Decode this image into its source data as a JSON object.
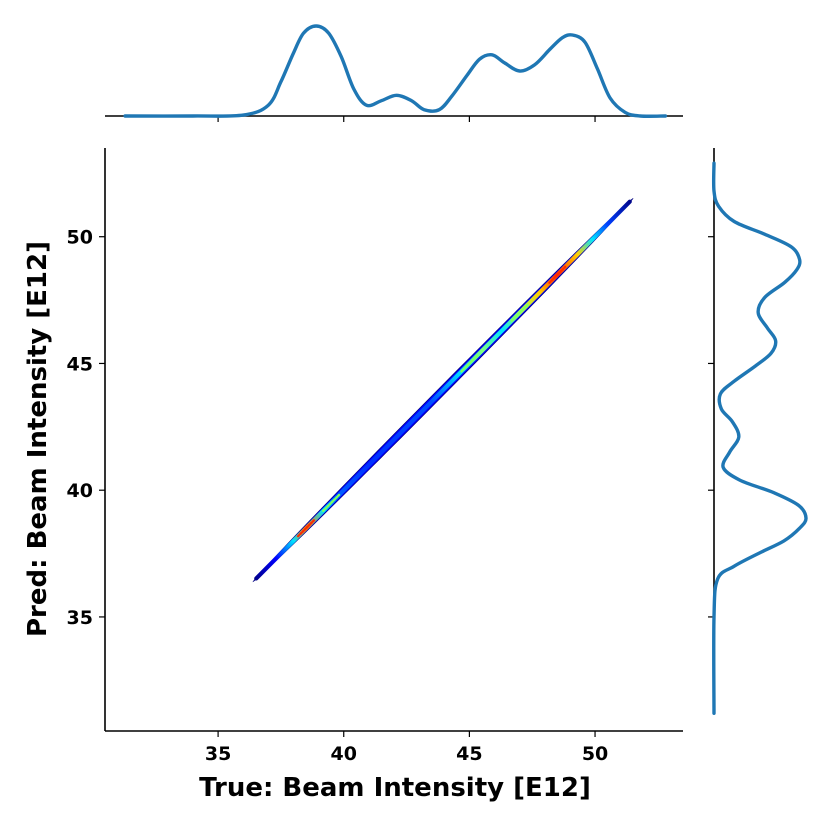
{
  "chart_data": {
    "type": "jointplot",
    "title": "",
    "xlabel": "True: Beam Intensity [E12]",
    "ylabel": "Pred: Beam Intensity [E12]",
    "xlim": [
      30.5,
      53.5
    ],
    "ylim": [
      30.5,
      53.5
    ],
    "xticks": [
      35,
      40,
      45,
      50
    ],
    "yticks": [
      35,
      40,
      45,
      50
    ],
    "grid": false,
    "legend": "none",
    "joint": {
      "kind": "density contour (kde)",
      "colormap": "jet",
      "x_range": [
        36.4,
        51.5
      ],
      "y_range": [
        36.4,
        51.5
      ],
      "density_peaks": [
        {
          "x": 38.5,
          "y": 38.5,
          "level": "high"
        },
        {
          "x": 39.5,
          "y": 39.5,
          "level": "medium"
        },
        {
          "x": 45.0,
          "y": 45.0,
          "level": "medium"
        },
        {
          "x": 47.0,
          "y": 47.0,
          "level": "medium"
        },
        {
          "x": 48.5,
          "y": 48.5,
          "level": "high"
        }
      ]
    },
    "marginal_x": {
      "name": "True: Beam Intensity [E12]",
      "x": [
        31.3,
        34.0,
        36.0,
        37.0,
        37.5,
        38.0,
        38.4,
        38.9,
        39.4,
        39.9,
        40.4,
        40.9,
        41.5,
        42.1,
        42.7,
        43.2,
        43.8,
        44.3,
        44.9,
        45.4,
        45.9,
        46.4,
        47.0,
        47.6,
        48.2,
        48.7,
        49.1,
        49.6,
        50.1,
        50.6,
        51.2,
        51.8,
        52.8
      ],
      "density": [
        0.0,
        0.0,
        0.01,
        0.12,
        0.38,
        0.7,
        0.92,
        1.0,
        0.92,
        0.66,
        0.3,
        0.12,
        0.17,
        0.23,
        0.17,
        0.07,
        0.07,
        0.22,
        0.45,
        0.63,
        0.68,
        0.59,
        0.5,
        0.57,
        0.74,
        0.87,
        0.9,
        0.82,
        0.52,
        0.2,
        0.04,
        0.0,
        0.0
      ]
    },
    "marginal_y": {
      "name": "Pred: Beam Intensity [E12]",
      "y": [
        31.2,
        35.0,
        36.5,
        37.0,
        37.5,
        38.0,
        38.5,
        38.9,
        39.4,
        39.9,
        40.4,
        40.9,
        41.5,
        42.1,
        42.7,
        43.2,
        43.8,
        44.3,
        44.9,
        45.4,
        45.9,
        46.4,
        47.0,
        47.6,
        48.2,
        48.7,
        49.1,
        49.6,
        50.1,
        50.6,
        51.2,
        51.8,
        52.9
      ],
      "density": [
        0.0,
        0.0,
        0.04,
        0.22,
        0.48,
        0.76,
        0.93,
        1.0,
        0.92,
        0.65,
        0.28,
        0.1,
        0.17,
        0.27,
        0.2,
        0.08,
        0.07,
        0.22,
        0.45,
        0.62,
        0.67,
        0.58,
        0.48,
        0.55,
        0.77,
        0.9,
        0.93,
        0.84,
        0.55,
        0.22,
        0.05,
        0.0,
        0.0
      ]
    }
  }
}
